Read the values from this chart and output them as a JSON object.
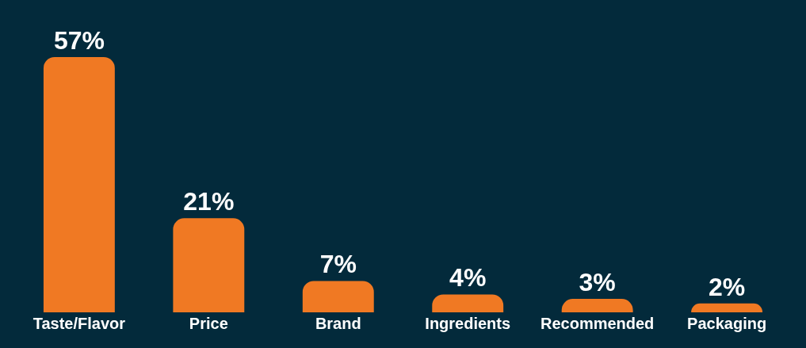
{
  "chart_data": {
    "type": "bar",
    "categories": [
      "Taste/Flavor",
      "Price",
      "Brand",
      "Ingredients",
      "Recommended",
      "Packaging"
    ],
    "values": [
      57,
      21,
      7,
      4,
      3,
      2
    ],
    "value_labels": [
      "57%",
      "21%",
      "7%",
      "4%",
      "3%",
      "2%"
    ],
    "color": "#f07923",
    "grid": false,
    "legend": false
  }
}
